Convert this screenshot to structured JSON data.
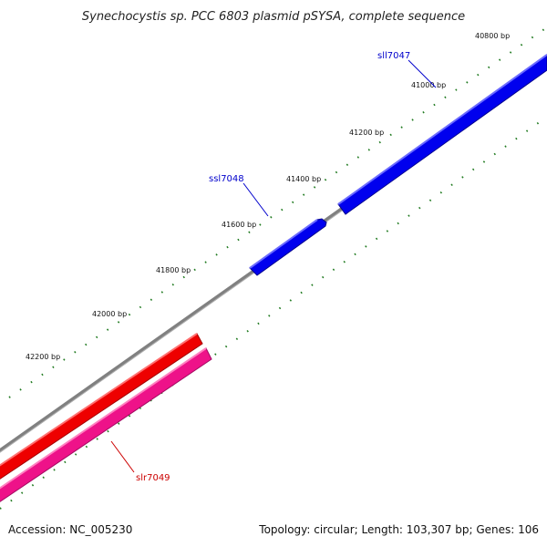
{
  "map": {
    "title": "Synechocystis sp. PCC 6803 plasmid pSYSA, complete sequence",
    "accession": "Accession: NC_005230",
    "summary": "Topology: circular; Length: 103,307 bp; Genes: 106"
  },
  "ticks": [
    "40800 bp",
    "41000 bp",
    "41200 bp",
    "41400 bp",
    "41600 bp",
    "41800 bp",
    "42000 bp",
    "42200 bp"
  ],
  "genes": [
    {
      "name": "sll7047",
      "strand": "minus",
      "color": "#0000ee"
    },
    {
      "name": "ssl7048",
      "strand": "minus",
      "color": "#0000ee"
    },
    {
      "name": "slr7049",
      "strand": "plus",
      "color": "#ee0000"
    }
  ],
  "colors": {
    "backbone": "#808080",
    "minus_strand": "#0000ee",
    "plus_strand": "#ee0000",
    "plus_strand_secondary": "#ee1289",
    "tick_marks": "#1f7a1f"
  }
}
